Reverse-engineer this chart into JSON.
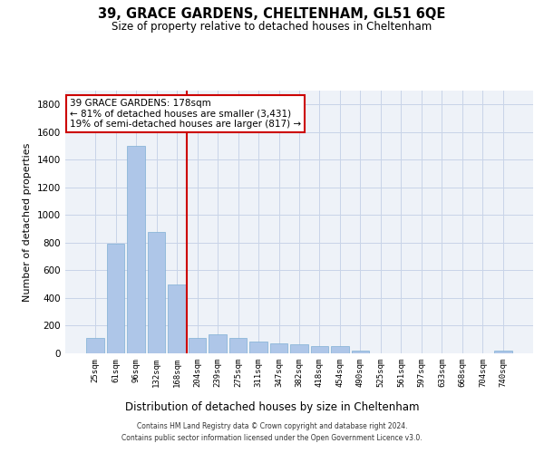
{
  "title": "39, GRACE GARDENS, CHELTENHAM, GL51 6QE",
  "subtitle": "Size of property relative to detached houses in Cheltenham",
  "xlabel": "Distribution of detached houses by size in Cheltenham",
  "ylabel": "Number of detached properties",
  "bin_labels": [
    "25sqm",
    "61sqm",
    "96sqm",
    "132sqm",
    "168sqm",
    "204sqm",
    "239sqm",
    "275sqm",
    "311sqm",
    "347sqm",
    "382sqm",
    "418sqm",
    "454sqm",
    "490sqm",
    "525sqm",
    "561sqm",
    "597sqm",
    "633sqm",
    "668sqm",
    "704sqm",
    "740sqm"
  ],
  "bar_values": [
    110,
    790,
    1500,
    880,
    500,
    110,
    140,
    110,
    85,
    75,
    65,
    55,
    50,
    20,
    0,
    0,
    0,
    0,
    0,
    0,
    20
  ],
  "bar_color": "#aec6e8",
  "bar_edge_color": "#7fafd4",
  "ylim": [
    0,
    1900
  ],
  "yticks": [
    0,
    200,
    400,
    600,
    800,
    1000,
    1200,
    1400,
    1600,
    1800
  ],
  "property_label": "39 GRACE GARDENS: 178sqm",
  "annotation_line1": "← 81% of detached houses are smaller (3,431)",
  "annotation_line2": "19% of semi-detached houses are larger (817) →",
  "vline_color": "#cc0000",
  "annotation_box_color": "#ffffff",
  "annotation_box_edge": "#cc0000",
  "grid_color": "#c8d4e8",
  "background_color": "#eef2f8",
  "footnote1": "Contains HM Land Registry data © Crown copyright and database right 2024.",
  "footnote2": "Contains public sector information licensed under the Open Government Licence v3.0."
}
